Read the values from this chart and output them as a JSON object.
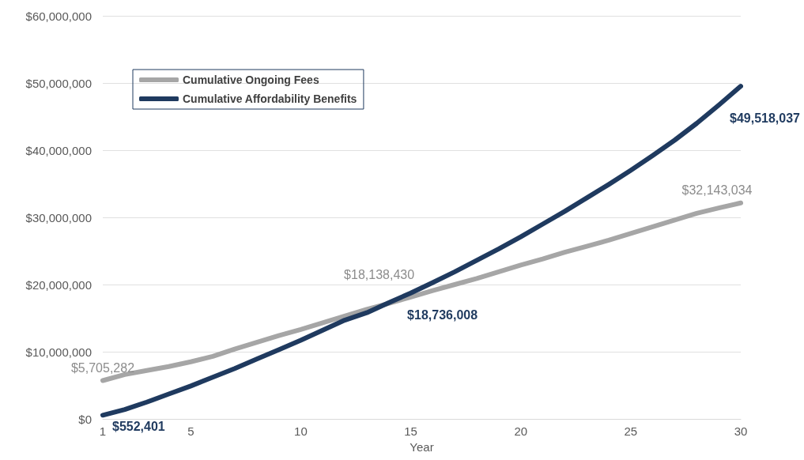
{
  "chart_data": {
    "type": "line",
    "xlabel": "Year",
    "x": [
      1,
      2,
      3,
      4,
      5,
      6,
      7,
      8,
      9,
      10,
      11,
      12,
      13,
      14,
      15,
      16,
      17,
      18,
      19,
      20,
      21,
      22,
      23,
      24,
      25,
      26,
      27,
      28,
      29,
      30
    ],
    "xlim": [
      1,
      30
    ],
    "xticks": [
      1,
      5,
      10,
      15,
      20,
      25,
      30
    ],
    "ylim": [
      0,
      60000000
    ],
    "yticks": [
      {
        "value": 0,
        "label": "$0"
      },
      {
        "value": 10000000,
        "label": "$10,000,000"
      },
      {
        "value": 20000000,
        "label": "$20,000,000"
      },
      {
        "value": 30000000,
        "label": "$30,000,000"
      },
      {
        "value": 40000000,
        "label": "$40,000,000"
      },
      {
        "value": 50000000,
        "label": "$50,000,000"
      },
      {
        "value": 60000000,
        "label": "$60,000,000"
      }
    ],
    "grid": "y",
    "legend": "top left",
    "marker": "none",
    "line_style": "solid",
    "series": [
      {
        "name": "Cumulative Ongoing Fees",
        "color": "#a6a6a6",
        "values": [
          5705282,
          6600000,
          7200000,
          7800000,
          8500000,
          9300000,
          10400000,
          11400000,
          12400000,
          13300000,
          14300000,
          15300000,
          16300000,
          17200000,
          18138430,
          19100000,
          20000000,
          20900000,
          21900000,
          22900000,
          23800000,
          24800000,
          25700000,
          26600000,
          27600000,
          28600000,
          29600000,
          30600000,
          31400000,
          32143034
        ],
        "value_labels": [
          "$5,705,282",
          null,
          null,
          null,
          null,
          null,
          null,
          null,
          null,
          null,
          null,
          null,
          null,
          null,
          "$18,138,430",
          null,
          null,
          null,
          null,
          null,
          null,
          null,
          null,
          null,
          null,
          null,
          null,
          null,
          null,
          "$32,143,034"
        ]
      },
      {
        "name": "Cumulative Affordability Benefits",
        "color": "#1f3a5f",
        "values": [
          552401,
          1400000,
          2500000,
          3700000,
          4900000,
          6200000,
          7500000,
          8900000,
          10300000,
          11700000,
          13200000,
          14700000,
          15800000,
          17300000,
          18736008,
          20300000,
          21900000,
          23600000,
          25300000,
          27100000,
          29000000,
          30900000,
          32900000,
          34900000,
          37000000,
          39200000,
          41500000,
          44000000,
          46700000,
          49518037
        ],
        "value_labels": [
          "$552,401",
          null,
          null,
          null,
          null,
          null,
          null,
          null,
          null,
          null,
          null,
          null,
          null,
          null,
          "$18,736,008",
          null,
          null,
          null,
          null,
          null,
          null,
          null,
          null,
          null,
          null,
          null,
          null,
          null,
          null,
          "$49,518,037"
        ]
      }
    ]
  }
}
